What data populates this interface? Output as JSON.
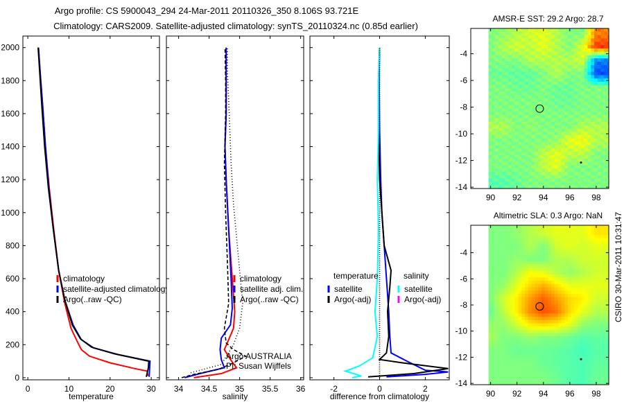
{
  "figure": {
    "title_line1": "Argo profile: CS 5900043_294 24-Mar-2011 20110326_350 8.106S 93.721E",
    "title_line2": "Climatology: CARS2009. Satellite-adjusted climatology: synTS_20110324.nc (0.85d earlier)",
    "footer_stamp": "CSIRO 30-Mar-2011 10:31:47",
    "argo_program": "Argo AUSTRALIA",
    "pi": "PI: Susan Wijffels"
  },
  "colors": {
    "climatology": "#ff0000",
    "satellite": "#0000ff",
    "argo": "#000000",
    "satellite_sal": "#00ffff",
    "argo_sal": "#ff00ff"
  },
  "chart_data": [
    {
      "type": "line",
      "id": "temperature",
      "xlabel": "temperature",
      "ylabel": "",
      "xlim": [
        -1.2,
        32
      ],
      "ylim": [
        2070,
        -13
      ],
      "xticks": [
        0,
        10,
        20,
        30
      ],
      "yticks": [
        0,
        200,
        400,
        600,
        800,
        1000,
        1200,
        1400,
        1600,
        1800,
        2000
      ],
      "legend": {
        "placement": "lower-left",
        "entries": [
          "climatology",
          "satellite-adjusted climatology",
          "Argo(..raw -QC)"
        ]
      },
      "series": [
        {
          "name": "climatology",
          "color": "#ff0000",
          "points": [
            [
              29.2,
              10
            ],
            [
              29,
              40
            ],
            [
              26,
              55
            ],
            [
              20,
              90
            ],
            [
              15,
              130
            ],
            [
              13,
              170
            ],
            [
              12,
              220
            ],
            [
              10.5,
              300
            ],
            [
              9,
              450
            ],
            [
              7.5,
              650
            ],
            [
              6.3,
              900
            ],
            [
              5.2,
              1150
            ],
            [
              4.3,
              1400
            ],
            [
              3.6,
              1650
            ],
            [
              3,
              1850
            ],
            [
              2.6,
              2000
            ]
          ]
        },
        {
          "name": "satellite-adjusted climatology",
          "color": "#0000ff",
          "points": [
            [
              29.5,
              5
            ],
            [
              29.6,
              60
            ],
            [
              29.7,
              100
            ],
            [
              22,
              140
            ],
            [
              16,
              180
            ],
            [
              13,
              230
            ],
            [
              11,
              320
            ],
            [
              9,
              470
            ],
            [
              7.5,
              650
            ],
            [
              6.2,
              900
            ],
            [
              5.1,
              1150
            ],
            [
              4.3,
              1400
            ],
            [
              3.6,
              1650
            ],
            [
              3,
              1850
            ],
            [
              2.6,
              2000
            ]
          ]
        },
        {
          "name": "Argo(..raw -QC)",
          "color": "#000000",
          "points": [
            [
              28.8,
              5
            ],
            [
              29.3,
              60
            ],
            [
              29.4,
              100
            ],
            [
              21,
              145
            ],
            [
              15.5,
              185
            ],
            [
              12.8,
              235
            ],
            [
              10.8,
              320
            ],
            [
              9,
              470
            ],
            [
              7.5,
              650
            ],
            [
              6.2,
              900
            ],
            [
              5,
              1150
            ],
            [
              4.1,
              1400
            ],
            [
              3.4,
              1650
            ],
            [
              2.9,
              1850
            ],
            [
              2.5,
              2000
            ]
          ]
        }
      ]
    },
    {
      "type": "line",
      "id": "salinity",
      "xlabel": "salinity",
      "xlim": [
        33.8,
        36.05
      ],
      "ylim": [
        2070,
        -13
      ],
      "xticks": [
        34,
        34.5,
        35,
        35.5,
        36
      ],
      "legend": {
        "placement": "lower-right",
        "entries": [
          "climatology",
          "satellite adj. clim.",
          "Argo(..raw -QC)"
        ]
      },
      "series": [
        {
          "name": "climatology",
          "color": "#ff0000",
          "points": [
            [
              34.25,
              0
            ],
            [
              34.7,
              25
            ],
            [
              34.95,
              60
            ],
            [
              34.85,
              110
            ],
            [
              34.75,
              170
            ],
            [
              34.82,
              230
            ],
            [
              34.9,
              300
            ],
            [
              34.92,
              400
            ],
            [
              34.88,
              600
            ],
            [
              34.82,
              900
            ],
            [
              34.78,
              1200
            ],
            [
              34.76,
              1400
            ],
            [
              34.78,
              1600
            ],
            [
              34.78,
              1800
            ],
            [
              34.78,
              2000
            ]
          ]
        },
        {
          "name": "satellite adj. clim.",
          "color": "#0000ff",
          "points": [
            [
              34.1,
              0
            ],
            [
              34.35,
              25
            ],
            [
              34.75,
              60
            ],
            [
              34.7,
              110
            ],
            [
              34.68,
              170
            ],
            [
              34.7,
              240
            ],
            [
              34.85,
              320
            ],
            [
              34.88,
              420
            ],
            [
              34.86,
              600
            ],
            [
              34.82,
              900
            ],
            [
              34.78,
              1200
            ],
            [
              34.76,
              1400
            ],
            [
              34.78,
              1600
            ],
            [
              34.78,
              1800
            ],
            [
              34.78,
              2000
            ]
          ]
        },
        {
          "name": "Argo(..raw -QC)",
          "color": "#000000",
          "dash": "5,3",
          "points": [
            [
              34.05,
              0
            ],
            [
              34.25,
              20
            ],
            [
              34.65,
              50
            ],
            [
              34.9,
              90
            ],
            [
              35.1,
              130
            ],
            [
              34.9,
              170
            ],
            [
              34.78,
              210
            ],
            [
              34.75,
              300
            ],
            [
              34.82,
              450
            ],
            [
              34.8,
              700
            ],
            [
              34.77,
              1000
            ],
            [
              34.75,
              1300
            ],
            [
              34.77,
              1600
            ],
            [
              34.77,
              1800
            ],
            [
              34.76,
              2000
            ]
          ]
        },
        {
          "name": "Argo (dotted reference)",
          "color": "#000000",
          "dash": "1,3",
          "points": [
            [
              34.2,
              30
            ],
            [
              34.7,
              80
            ],
            [
              34.9,
              200
            ],
            [
              35.0,
              300
            ],
            [
              35.05,
              450
            ],
            [
              35.0,
              650
            ],
            [
              34.95,
              850
            ],
            [
              34.9,
              1050
            ],
            [
              34.86,
              1300
            ],
            [
              34.83,
              1600
            ],
            [
              34.8,
              1850
            ],
            [
              34.8,
              2000
            ]
          ]
        }
      ]
    },
    {
      "type": "line",
      "id": "difference",
      "xlabel": "difference from climatology",
      "xlim": [
        -3.05,
        3.05
      ],
      "ylim": [
        2070,
        -13
      ],
      "xticks": [
        -2,
        0,
        2
      ],
      "legend": {
        "placement": "lower",
        "temperature_header": "temperature",
        "salinity_header": "salinity",
        "entries": [
          "satellite",
          "Argo(-adj)",
          "satellite",
          "Argo(-adj)"
        ]
      },
      "series": [
        {
          "name": "temperature satellite",
          "color": "#0000ff",
          "points": [
            [
              0.3,
              5
            ],
            [
              2,
              20
            ],
            [
              3,
              35
            ],
            [
              2,
              45
            ],
            [
              1.2,
              100
            ],
            [
              0.5,
              150
            ],
            [
              0.45,
              250
            ],
            [
              0.4,
              400
            ],
            [
              0.3,
              600
            ],
            [
              0.2,
              800
            ],
            [
              0.1,
              1000
            ],
            [
              0.05,
              1200
            ],
            [
              0,
              1500
            ],
            [
              -0.02,
              1800
            ],
            [
              0,
              2000
            ]
          ]
        },
        {
          "name": "temperature Argo(-adj)",
          "color": "#000000",
          "points": [
            [
              -0.5,
              5
            ],
            [
              1.5,
              25
            ],
            [
              3,
              55
            ],
            [
              1,
              90
            ],
            [
              0,
              110
            ],
            [
              0.3,
              150
            ],
            [
              0.4,
              250
            ],
            [
              0.35,
              400
            ],
            [
              0.45,
              550
            ],
            [
              0.5,
              650
            ],
            [
              0.2,
              800
            ],
            [
              0.1,
              1000
            ],
            [
              0,
              1200
            ],
            [
              -0.05,
              1500
            ],
            [
              -0.05,
              1800
            ],
            [
              0,
              2000
            ]
          ]
        },
        {
          "name": "salinity satellite",
          "color": "#00ffff",
          "points": [
            [
              -1.2,
              0
            ],
            [
              -0.8,
              10
            ],
            [
              -1.5,
              40
            ],
            [
              -0.9,
              70
            ],
            [
              -0.3,
              120
            ],
            [
              -0.1,
              250
            ],
            [
              -0.2,
              400
            ],
            [
              -0.1,
              600
            ],
            [
              -0.05,
              900
            ],
            [
              -0.1,
              1200
            ],
            [
              -0.05,
              1500
            ],
            [
              -0.05,
              1800
            ],
            [
              0,
              2000
            ]
          ]
        },
        {
          "name": "zero reference",
          "color": "#000000",
          "dash": "1,2",
          "points": [
            [
              0,
              0
            ],
            [
              0,
              2000
            ]
          ]
        }
      ]
    },
    {
      "type": "heatmap",
      "id": "sst_map",
      "title": "AMSR-E SST: 29.2 Argo: 28.7",
      "xlim": [
        88.5,
        98.95
      ],
      "ylim": [
        -2.1,
        -14.1
      ],
      "xticks": [
        90,
        92,
        94,
        96,
        98
      ],
      "yticks": [
        -4,
        -6,
        -8,
        -10,
        -12,
        -14
      ],
      "lon": [
        90,
        91,
        92,
        93,
        94,
        95,
        96,
        97,
        98
      ],
      "lat": [
        -2.5,
        -3.5,
        -4.5,
        -5.5,
        -6.5,
        -7.5,
        -8.5,
        -9.5,
        -10.5,
        -11.5,
        -12.5,
        -13.5
      ],
      "values_normalized": [
        [
          0.5,
          0.52,
          0.55,
          0.58,
          0.6,
          0.55,
          0.5,
          0.5,
          0.75
        ],
        [
          0.5,
          0.55,
          0.58,
          0.56,
          0.6,
          0.55,
          0.5,
          0.6,
          0.82
        ],
        [
          0.5,
          0.5,
          0.5,
          0.55,
          0.55,
          0.55,
          0.55,
          0.58,
          0.25
        ],
        [
          0.48,
          0.48,
          0.47,
          0.47,
          0.5,
          0.55,
          0.5,
          0.5,
          0.2
        ],
        [
          0.5,
          0.5,
          0.48,
          0.48,
          0.5,
          0.48,
          0.48,
          0.5,
          0.5
        ],
        [
          0.5,
          0.5,
          0.5,
          0.5,
          0.5,
          0.48,
          0.48,
          0.5,
          0.5
        ],
        [
          0.5,
          0.5,
          0.5,
          0.5,
          0.5,
          0.5,
          0.5,
          0.5,
          0.5
        ],
        [
          0.55,
          0.55,
          0.5,
          0.52,
          0.5,
          0.5,
          0.5,
          0.55,
          0.55
        ],
        [
          0.5,
          0.5,
          0.5,
          0.5,
          0.5,
          0.52,
          0.6,
          0.62,
          0.55
        ],
        [
          0.5,
          0.5,
          0.5,
          0.5,
          0.56,
          0.6,
          0.56,
          0.56,
          0.5
        ],
        [
          0.5,
          0.5,
          0.5,
          0.5,
          0.56,
          0.6,
          0.5,
          0.5,
          0.5
        ],
        [
          0.46,
          0.46,
          0.48,
          0.5,
          0.5,
          0.5,
          0.5,
          0.5,
          0.5
        ]
      ],
      "profile_location": [
        93.72,
        -8.11
      ]
    },
    {
      "type": "heatmap",
      "id": "sla_map",
      "title": "Altimetric SLA: 0.3 Argo: NaN",
      "xlim": [
        88.5,
        98.95
      ],
      "ylim": [
        -1.9,
        -14.1
      ],
      "xticks": [
        90,
        92,
        94,
        96,
        98
      ],
      "yticks": [
        -4,
        -6,
        -8,
        -10,
        -12,
        -14
      ],
      "lon": [
        90,
        91,
        92,
        93,
        94,
        95,
        96,
        97,
        98
      ],
      "lat": [
        -2.5,
        -3.5,
        -4.5,
        -5.5,
        -6.5,
        -7.5,
        -8.5,
        -9.5,
        -10.5,
        -11.5,
        -12.5,
        -13.5
      ],
      "values_normalized": [
        [
          0.5,
          0.5,
          0.52,
          0.55,
          0.58,
          0.6,
          0.6,
          0.6,
          0.65
        ],
        [
          0.5,
          0.5,
          0.5,
          0.55,
          0.5,
          0.58,
          0.6,
          0.58,
          0.6
        ],
        [
          0.5,
          0.5,
          0.52,
          0.5,
          0.5,
          0.55,
          0.55,
          0.58,
          0.58
        ],
        [
          0.5,
          0.5,
          0.55,
          0.62,
          0.6,
          0.55,
          0.52,
          0.55,
          0.58
        ],
        [
          0.5,
          0.52,
          0.6,
          0.66,
          0.7,
          0.65,
          0.6,
          0.6,
          0.6
        ],
        [
          0.5,
          0.58,
          0.64,
          0.72,
          0.78,
          0.72,
          0.66,
          0.64,
          0.58
        ],
        [
          0.48,
          0.56,
          0.64,
          0.74,
          0.8,
          0.76,
          0.66,
          0.6,
          0.55
        ],
        [
          0.52,
          0.52,
          0.58,
          0.64,
          0.66,
          0.64,
          0.6,
          0.52,
          0.5
        ],
        [
          0.54,
          0.5,
          0.5,
          0.52,
          0.5,
          0.5,
          0.48,
          0.46,
          0.47
        ],
        [
          0.5,
          0.5,
          0.48,
          0.48,
          0.48,
          0.47,
          0.46,
          0.44,
          0.46
        ],
        [
          0.5,
          0.5,
          0.5,
          0.5,
          0.48,
          0.47,
          0.46,
          0.45,
          0.47
        ],
        [
          0.5,
          0.5,
          0.5,
          0.5,
          0.5,
          0.48,
          0.46,
          0.45,
          0.48
        ]
      ],
      "profile_location": [
        93.72,
        -8.11
      ]
    }
  ]
}
